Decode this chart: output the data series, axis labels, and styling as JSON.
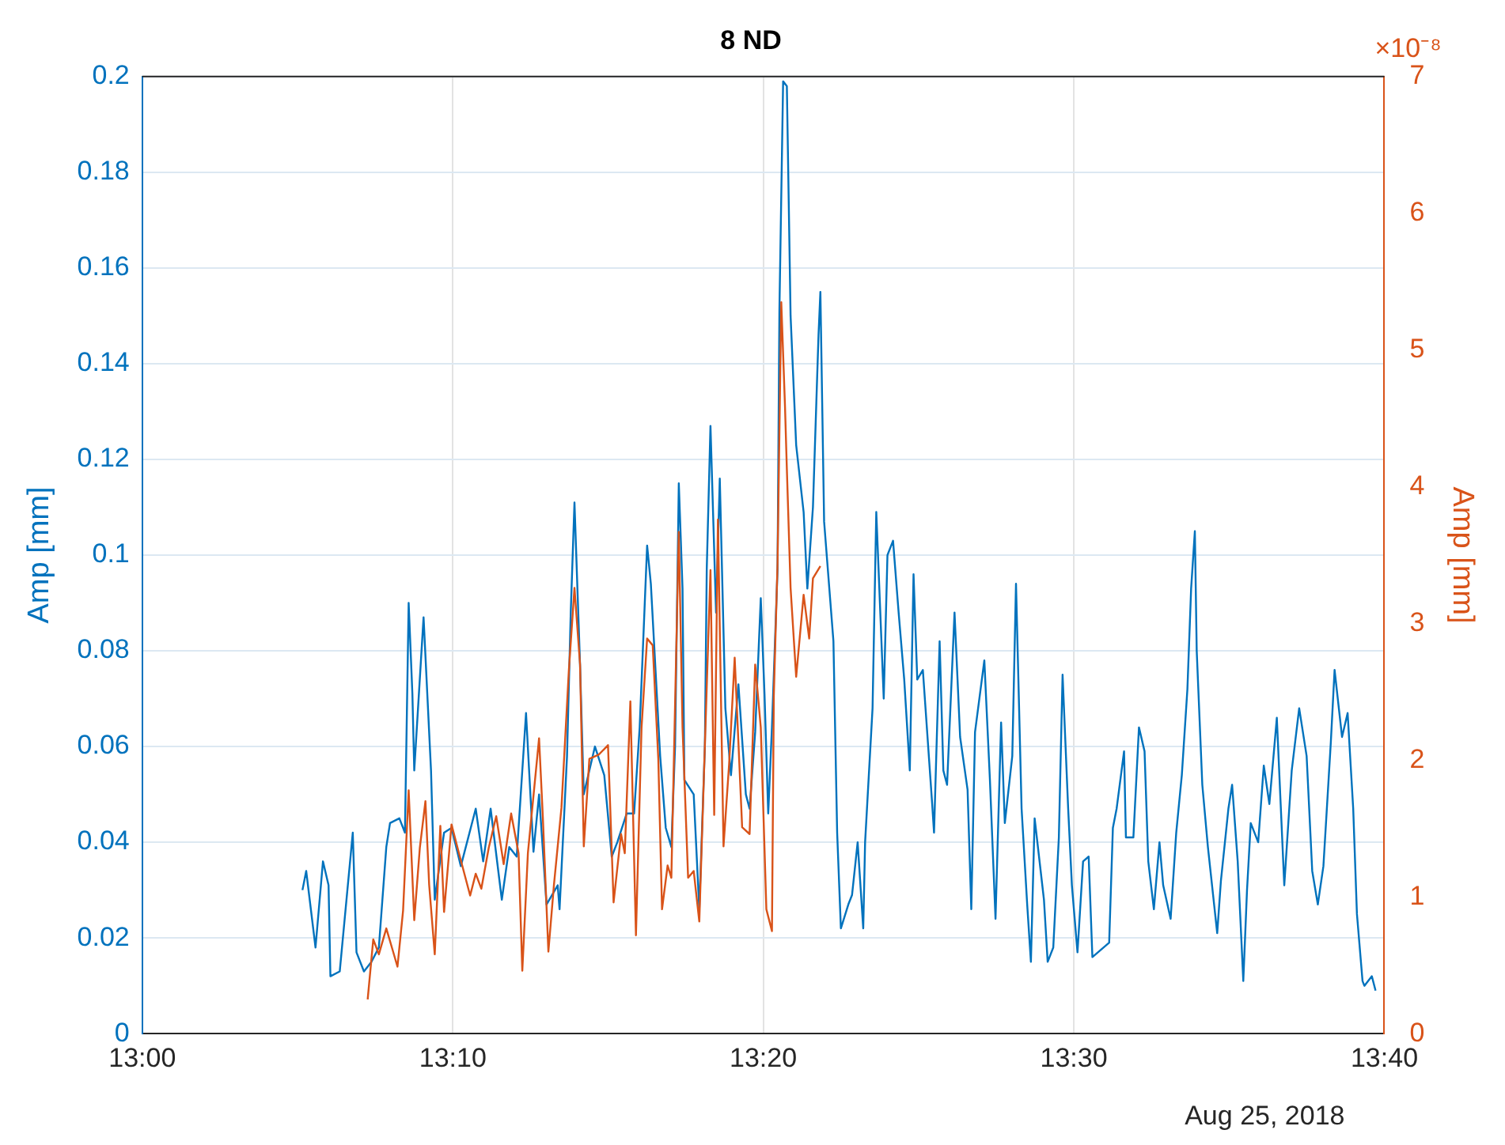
{
  "chart_data": {
    "type": "line",
    "title": "8 ND",
    "ylabel": "Amp [mm]",
    "y2label": "Amp [mm]",
    "annotations": [
      "×10⁻⁸",
      "Aug 25, 2018"
    ],
    "xlim": [
      13,
      13.6667
    ],
    "xticks": [
      {
        "value": 13,
        "label": "13:00"
      },
      {
        "value": 13.1667,
        "label": "13:10"
      },
      {
        "value": 13.3333,
        "label": "13:20"
      },
      {
        "value": 13.5,
        "label": "13:30"
      },
      {
        "value": 13.6667,
        "label": "13:40"
      }
    ],
    "ylim": [
      0,
      0.2
    ],
    "yticks": [
      0,
      0.02,
      0.04,
      0.06,
      0.08,
      0.1,
      0.12,
      0.14,
      0.16,
      0.18,
      0.2
    ],
    "y2lim": [
      0,
      7
    ],
    "y2ticks": [
      0,
      1,
      2,
      3,
      4,
      5,
      6,
      7
    ],
    "grid": true,
    "legend": false,
    "marker": "none",
    "line_style": "solid",
    "series": [
      {
        "color": "#0072bd",
        "x": [
          13.086,
          13.088,
          13.093,
          13.097,
          13.1,
          13.101,
          13.106,
          13.113,
          13.115,
          13.119,
          13.123,
          13.127,
          13.131,
          13.133,
          13.138,
          13.141,
          13.143,
          13.145,
          13.146,
          13.151,
          13.155,
          13.157,
          13.162,
          13.166,
          13.171,
          13.179,
          13.183,
          13.187,
          13.193,
          13.197,
          13.201,
          13.206,
          13.21,
          13.213,
          13.217,
          13.223,
          13.224,
          13.228,
          13.23,
          13.232,
          13.235,
          13.237,
          13.243,
          13.248,
          13.252,
          13.255,
          13.26,
          13.264,
          13.267,
          13.271,
          13.273,
          13.278,
          13.281,
          13.284,
          13.286,
          13.288,
          13.29,
          13.291,
          13.296,
          13.299,
          13.302,
          13.303,
          13.305,
          13.308,
          13.31,
          13.313,
          13.316,
          13.32,
          13.324,
          13.326,
          13.329,
          13.332,
          13.334,
          13.336,
          13.338,
          13.341,
          13.342,
          13.344,
          13.346,
          13.348,
          13.351,
          13.355,
          13.357,
          13.36,
          13.363,
          13.364,
          13.366,
          13.371,
          13.373,
          13.375,
          13.379,
          13.381,
          13.384,
          13.387,
          13.388,
          13.392,
          13.394,
          13.398,
          13.4,
          13.403,
          13.406,
          13.409,
          13.412,
          13.414,
          13.416,
          13.419,
          13.424,
          13.425,
          13.428,
          13.43,
          13.432,
          13.436,
          13.439,
          13.443,
          13.445,
          13.447,
          13.452,
          13.455,
          13.458,
          13.461,
          13.463,
          13.467,
          13.469,
          13.472,
          13.475,
          13.477,
          13.479,
          13.484,
          13.486,
          13.489,
          13.492,
          13.494,
          13.497,
          13.499,
          13.502,
          13.505,
          13.508,
          13.51,
          13.519,
          13.521,
          13.523,
          13.527,
          13.528,
          13.532,
          13.535,
          13.538,
          13.54,
          13.543,
          13.546,
          13.548,
          13.552,
          13.555,
          13.558,
          13.561,
          13.563,
          13.565,
          13.566,
          13.569,
          13.572,
          13.577,
          13.579,
          13.583,
          13.585,
          13.588,
          13.591,
          13.593,
          13.595,
          13.599,
          13.602,
          13.605,
          13.609,
          13.613,
          13.617,
          13.621,
          13.625,
          13.628,
          13.631,
          13.634,
          13.638,
          13.64,
          13.644,
          13.647,
          13.65,
          13.652,
          13.655,
          13.656,
          13.66,
          13.662
        ],
        "values": [
          0.03,
          0.034,
          0.018,
          0.036,
          0.031,
          0.012,
          0.013,
          0.042,
          0.017,
          0.013,
          0.015,
          0.018,
          0.039,
          0.044,
          0.045,
          0.042,
          0.09,
          0.071,
          0.055,
          0.087,
          0.055,
          0.028,
          0.042,
          0.043,
          0.035,
          0.047,
          0.036,
          0.047,
          0.028,
          0.039,
          0.037,
          0.067,
          0.038,
          0.05,
          0.027,
          0.031,
          0.026,
          0.058,
          0.088,
          0.111,
          0.077,
          0.05,
          0.06,
          0.054,
          0.037,
          0.04,
          0.046,
          0.046,
          0.064,
          0.102,
          0.094,
          0.058,
          0.043,
          0.039,
          0.06,
          0.115,
          0.093,
          0.053,
          0.05,
          0.026,
          0.06,
          0.097,
          0.127,
          0.088,
          0.116,
          0.068,
          0.054,
          0.073,
          0.05,
          0.047,
          0.063,
          0.091,
          0.071,
          0.046,
          0.064,
          0.097,
          0.151,
          0.199,
          0.198,
          0.15,
          0.123,
          0.109,
          0.093,
          0.11,
          0.146,
          0.155,
          0.107,
          0.082,
          0.042,
          0.022,
          0.027,
          0.029,
          0.04,
          0.022,
          0.04,
          0.068,
          0.109,
          0.07,
          0.1,
          0.103,
          0.088,
          0.074,
          0.055,
          0.096,
          0.074,
          0.076,
          0.048,
          0.042,
          0.082,
          0.055,
          0.052,
          0.088,
          0.062,
          0.051,
          0.026,
          0.063,
          0.078,
          0.053,
          0.024,
          0.065,
          0.044,
          0.058,
          0.094,
          0.047,
          0.027,
          0.015,
          0.045,
          0.028,
          0.015,
          0.018,
          0.041,
          0.075,
          0.047,
          0.031,
          0.017,
          0.036,
          0.037,
          0.016,
          0.019,
          0.043,
          0.047,
          0.059,
          0.041,
          0.041,
          0.064,
          0.059,
          0.036,
          0.026,
          0.04,
          0.031,
          0.024,
          0.042,
          0.054,
          0.072,
          0.093,
          0.105,
          0.08,
          0.052,
          0.039,
          0.021,
          0.032,
          0.047,
          0.052,
          0.036,
          0.011,
          0.03,
          0.044,
          0.04,
          0.056,
          0.048,
          0.066,
          0.031,
          0.055,
          0.068,
          0.058,
          0.034,
          0.027,
          0.035,
          0.061,
          0.076,
          0.062,
          0.067,
          0.047,
          0.025,
          0.011,
          0.01,
          0.012,
          0.009
        ]
      },
      {
        "color": "#d95319",
        "axis": "y2",
        "x": [
          13.121,
          13.124,
          13.127,
          13.131,
          13.134,
          13.137,
          13.14,
          13.143,
          13.146,
          13.149,
          13.152,
          13.154,
          13.157,
          13.16,
          13.162,
          13.166,
          13.17,
          13.176,
          13.179,
          13.182,
          13.186,
          13.19,
          13.194,
          13.198,
          13.202,
          13.204,
          13.207,
          13.213,
          13.215,
          13.218,
          13.221,
          13.225,
          13.229,
          13.232,
          13.235,
          13.237,
          13.24,
          13.245,
          13.25,
          13.253,
          13.257,
          13.259,
          13.262,
          13.265,
          13.268,
          13.271,
          13.274,
          13.277,
          13.279,
          13.282,
          13.284,
          13.288,
          13.29,
          13.293,
          13.296,
          13.299,
          13.302,
          13.305,
          13.307,
          13.309,
          13.312,
          13.315,
          13.318,
          13.322,
          13.326,
          13.329,
          13.332,
          13.335,
          13.338,
          13.339,
          13.341,
          13.343,
          13.345,
          13.346,
          13.348,
          13.351,
          13.355,
          13.358,
          13.36,
          13.364
        ],
        "values": [
          0.25,
          0.69,
          0.58,
          0.77,
          0.63,
          0.49,
          0.9,
          1.78,
          0.83,
          1.36,
          1.7,
          1.09,
          0.58,
          1.52,
          0.89,
          1.53,
          1.32,
          1.01,
          1.17,
          1.06,
          1.36,
          1.59,
          1.24,
          1.61,
          1.32,
          0.46,
          1.32,
          2.16,
          1.59,
          0.6,
          1.09,
          1.65,
          2.66,
          3.26,
          2.7,
          1.37,
          2.01,
          2.04,
          2.11,
          0.96,
          1.46,
          1.32,
          2.43,
          0.72,
          2.24,
          2.89,
          2.84,
          2.01,
          0.91,
          1.23,
          1.14,
          3.67,
          2.24,
          1.14,
          1.19,
          0.82,
          2.11,
          3.39,
          1.6,
          3.76,
          1.37,
          1.97,
          2.75,
          1.51,
          1.46,
          2.7,
          2.24,
          0.91,
          0.75,
          2.47,
          3.44,
          5.35,
          4.59,
          4.13,
          3.26,
          2.61,
          3.21,
          2.89,
          3.33,
          3.42
        ]
      }
    ]
  }
}
